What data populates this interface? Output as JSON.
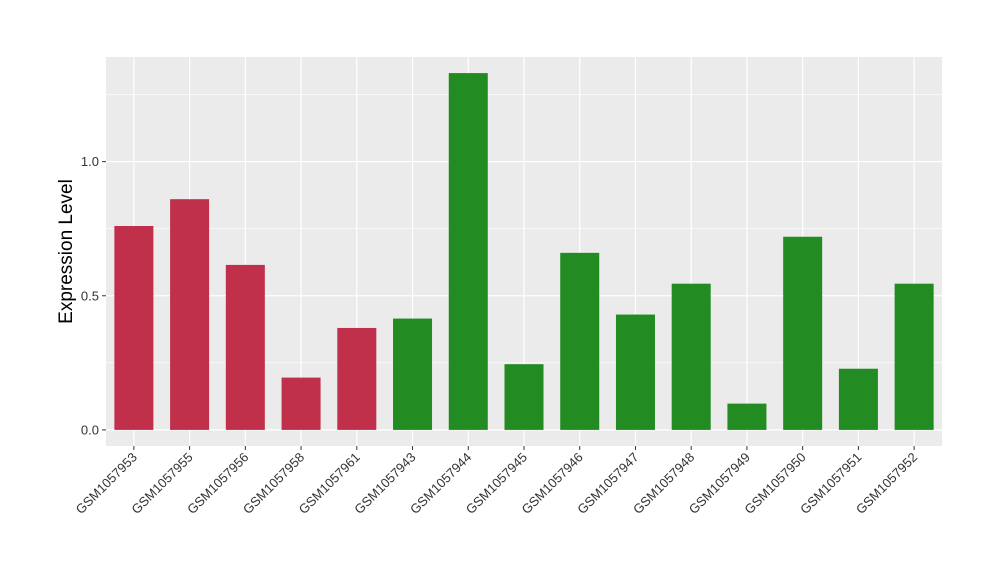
{
  "chart_data": {
    "type": "bar",
    "title": "",
    "xlabel": "",
    "ylabel": "Expression Level",
    "ylim": [
      -0.06,
      1.39
    ],
    "y_ticks": [
      0.0,
      0.5,
      1.0
    ],
    "y_tick_labels": [
      "0.0",
      "0.5",
      "1.0"
    ],
    "grid": true,
    "legend": "none",
    "categories": [
      "GSM1057953",
      "GSM1057955",
      "GSM1057956",
      "GSM1057958",
      "GSM1057961",
      "GSM1057943",
      "GSM1057944",
      "GSM1057945",
      "GSM1057946",
      "GSM1057947",
      "GSM1057948",
      "GSM1057949",
      "GSM1057950",
      "GSM1057951",
      "GSM1057952"
    ],
    "values": [
      0.76,
      0.86,
      0.615,
      0.195,
      0.38,
      0.415,
      1.33,
      0.245,
      0.66,
      0.43,
      0.545,
      0.098,
      0.72,
      0.228,
      0.545
    ],
    "bar_colors": [
      "#c0304a",
      "#c0304a",
      "#c0304a",
      "#c0304a",
      "#c0304a",
      "#228b22",
      "#228b22",
      "#228b22",
      "#228b22",
      "#228b22",
      "#228b22",
      "#228b22",
      "#228b22",
      "#228b22",
      "#228b22"
    ],
    "panel_background": "#ebebeb",
    "grid_color": "#ffffff"
  }
}
